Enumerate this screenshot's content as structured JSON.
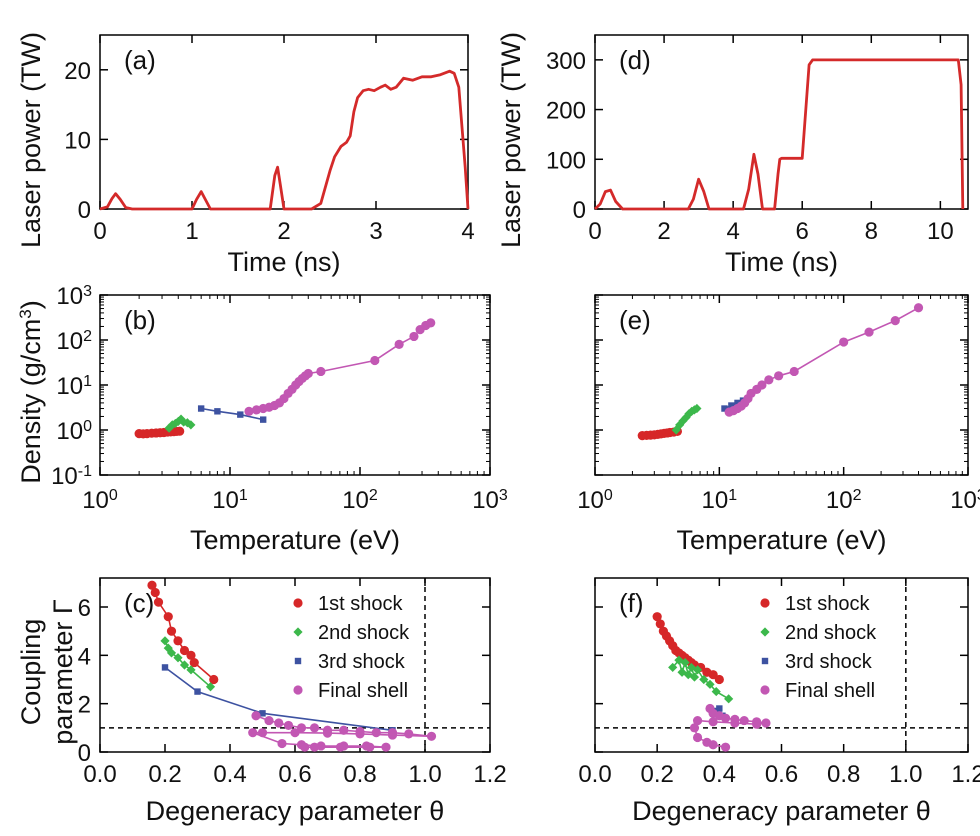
{
  "colors": {
    "laser": "#d42a2a",
    "shock1": "#d62728",
    "shock2": "#3cb84b",
    "shock3": "#3d52a1",
    "final": "#c257b3",
    "axis": "#000000"
  },
  "chart_data": [
    {
      "id": "a",
      "type": "line",
      "label": "(a)",
      "xlabel": "Time (ns)",
      "ylabel": "Laser power (TW)",
      "xlim": [
        0,
        4
      ],
      "ylim": [
        0,
        25
      ],
      "xticks": [
        0,
        1,
        2,
        3,
        4
      ],
      "yticks": [
        0,
        10,
        20
      ],
      "series": [
        {
          "name": "laser power",
          "color": "#d42a2a",
          "x": [
            0,
            0.08,
            0.13,
            0.17,
            0.22,
            0.28,
            0.35,
            1.0,
            1.05,
            1.1,
            1.14,
            1.2,
            1.85,
            1.9,
            1.93,
            1.96,
            2.0,
            2.3,
            2.4,
            2.5,
            2.55,
            2.62,
            2.68,
            2.72,
            2.76,
            2.8,
            2.86,
            2.92,
            2.98,
            3.05,
            3.1,
            3.16,
            3.22,
            3.3,
            3.4,
            3.5,
            3.6,
            3.7,
            3.8,
            3.85,
            3.9,
            3.97,
            4.0
          ],
          "y": [
            0,
            0.3,
            1.5,
            2.2,
            1.4,
            0.2,
            0,
            0,
            1.4,
            2.5,
            1.5,
            0,
            0,
            4.8,
            6.0,
            3.5,
            0,
            0,
            0.8,
            5.5,
            7.5,
            9.0,
            9.6,
            10.5,
            14.0,
            16.0,
            17.0,
            17.2,
            17.0,
            17.5,
            17.8,
            17.2,
            17.5,
            18.8,
            18.5,
            19.0,
            19.0,
            19.3,
            19.8,
            19.5,
            17.5,
            6.0,
            0
          ]
        }
      ]
    },
    {
      "id": "d",
      "type": "line",
      "label": "(d)",
      "xlabel": "Time (ns)",
      "ylabel": "Laser power (TW)",
      "xlim": [
        0,
        10.8
      ],
      "ylim": [
        0,
        350
      ],
      "xticks": [
        0,
        2,
        4,
        6,
        8,
        10
      ],
      "yticks": [
        0,
        100,
        200,
        300
      ],
      "series": [
        {
          "name": "laser power",
          "color": "#d42a2a",
          "x": [
            0,
            0.15,
            0.3,
            0.45,
            0.6,
            0.8,
            2.7,
            2.85,
            3.0,
            3.15,
            3.3,
            4.3,
            4.45,
            4.6,
            4.72,
            4.85,
            5.2,
            5.3,
            5.35,
            5.4,
            5.8,
            6.0,
            6.2,
            6.3,
            10.4,
            10.52,
            10.6,
            10.65
          ],
          "y": [
            0,
            10,
            35,
            38,
            15,
            0,
            0,
            20,
            60,
            35,
            0,
            0,
            40,
            110,
            70,
            0,
            0,
            70,
            100,
            102,
            102,
            102,
            290,
            300,
            300,
            300,
            250,
            0
          ]
        }
      ]
    },
    {
      "id": "b",
      "type": "scatter",
      "label": "(b)",
      "xlabel": "Temperature (eV)",
      "ylabel": "Density (g/cm3)",
      "xscale": "log",
      "yscale": "log",
      "xlim": [
        1,
        1000
      ],
      "ylim": [
        0.1,
        1000
      ],
      "xticks": [
        1,
        10,
        100,
        1000
      ],
      "yticks": [
        0.1,
        1,
        10,
        100,
        1000
      ],
      "series": [
        {
          "name": "1st shock",
          "marker": "circle",
          "color": "#d62728",
          "x": [
            2.0,
            2.15,
            2.3,
            2.5,
            2.7,
            2.9,
            3.1,
            3.3,
            3.5,
            3.7,
            3.9,
            4.1
          ],
          "y": [
            0.83,
            0.82,
            0.83,
            0.85,
            0.86,
            0.87,
            0.88,
            0.9,
            0.91,
            0.92,
            0.93,
            0.94
          ]
        },
        {
          "name": "2nd shock",
          "marker": "diamond",
          "color": "#3cb84b",
          "x": [
            3.4,
            3.6,
            3.8,
            4.0,
            4.2,
            4.4,
            4.7,
            5.0
          ],
          "y": [
            1.1,
            1.3,
            1.4,
            1.55,
            1.75,
            1.5,
            1.45,
            1.3
          ]
        },
        {
          "name": "3rd shock",
          "marker": "square",
          "color": "#3d52a1",
          "x": [
            6.0,
            8.0,
            12.0,
            18.0
          ],
          "y": [
            3.0,
            2.6,
            2.2,
            1.7
          ]
        },
        {
          "name": "Final shell",
          "marker": "circle",
          "color": "#c257b3",
          "x": [
            14,
            16,
            18,
            20,
            22,
            24,
            26,
            28,
            30,
            32,
            34,
            36,
            38,
            40,
            50,
            130,
            200,
            260,
            290,
            320,
            350
          ],
          "y": [
            2.6,
            2.8,
            3.0,
            3.2,
            3.5,
            4.0,
            5.0,
            6.5,
            8.0,
            10,
            12,
            14,
            16,
            18,
            20,
            35,
            80,
            120,
            170,
            210,
            240
          ]
        }
      ]
    },
    {
      "id": "e",
      "type": "scatter",
      "label": "(e)",
      "xlabel": "Temperature (eV)",
      "ylabel": "",
      "xscale": "log",
      "yscale": "log",
      "xlim": [
        1,
        1000
      ],
      "ylim": [
        0.1,
        1000
      ],
      "xticks": [
        1,
        10,
        100,
        1000
      ],
      "yticks": [],
      "series": [
        {
          "name": "1st shock",
          "marker": "circle",
          "color": "#d62728",
          "x": [
            2.4,
            2.6,
            2.8,
            3.0,
            3.2,
            3.4,
            3.6,
            3.8,
            4.0,
            4.3,
            4.6
          ],
          "y": [
            0.75,
            0.76,
            0.77,
            0.78,
            0.8,
            0.82,
            0.84,
            0.86,
            0.88,
            0.9,
            0.93
          ]
        },
        {
          "name": "2nd shock",
          "marker": "diamond",
          "color": "#3cb84b",
          "x": [
            4.5,
            4.8,
            5.1,
            5.4,
            5.7,
            6.0,
            6.3,
            6.6
          ],
          "y": [
            1.0,
            1.3,
            1.6,
            1.9,
            2.3,
            2.6,
            2.8,
            3.0
          ]
        },
        {
          "name": "3rd shock",
          "marker": "square",
          "color": "#3d52a1",
          "x": [
            11,
            12.5,
            14,
            15.5
          ],
          "y": [
            3.0,
            3.5,
            4.0,
            4.5
          ]
        },
        {
          "name": "Final shell",
          "marker": "circle",
          "color": "#c257b3",
          "x": [
            12,
            13,
            14,
            15,
            16,
            17,
            18,
            20,
            22,
            25,
            30,
            40,
            100,
            160,
            260,
            400
          ],
          "y": [
            2.5,
            2.7,
            3.0,
            3.4,
            4.0,
            5.0,
            6.5,
            8.0,
            10,
            13,
            16,
            20,
            90,
            150,
            270,
            520
          ]
        }
      ]
    },
    {
      "id": "c",
      "type": "scatter",
      "label": "(c)",
      "xlabel": "Degeneracy parameter θ",
      "ylabel": "Coupling parameter Γ",
      "xlim": [
        0,
        1.2
      ],
      "ylim": [
        0,
        7.2
      ],
      "xticks": [
        0.0,
        0.2,
        0.4,
        0.6,
        0.8,
        1.0,
        1.2
      ],
      "yticks": [
        0,
        2,
        4,
        6
      ],
      "reference_lines": {
        "vertical_x": 1.0,
        "horizontal_y": 1.0
      },
      "legend": [
        "1st shock",
        "2nd shock",
        "3rd shock",
        "Final shell"
      ],
      "series": [
        {
          "name": "1st shock",
          "marker": "circle",
          "color": "#d62728",
          "x": [
            0.16,
            0.17,
            0.18,
            0.21,
            0.22,
            0.24,
            0.26,
            0.28,
            0.29,
            0.35
          ],
          "y": [
            6.9,
            6.6,
            6.2,
            5.6,
            5.0,
            4.6,
            4.2,
            4.0,
            3.7,
            3.0
          ]
        },
        {
          "name": "2nd shock",
          "marker": "diamond",
          "color": "#3cb84b",
          "x": [
            0.2,
            0.21,
            0.22,
            0.24,
            0.26,
            0.28,
            0.34
          ],
          "y": [
            4.6,
            4.3,
            4.1,
            3.9,
            3.6,
            3.4,
            2.7
          ]
        },
        {
          "name": "3rd shock",
          "marker": "square",
          "color": "#3d52a1",
          "x": [
            0.2,
            0.3,
            0.5,
            0.9
          ],
          "y": [
            3.5,
            2.5,
            1.6,
            0.9
          ]
        },
        {
          "name": "Final shell",
          "marker": "circle",
          "color": "#c257b3",
          "x": [
            0.48,
            0.52,
            0.55,
            0.58,
            0.62,
            0.66,
            0.7,
            0.75,
            0.8,
            0.85,
            0.9,
            0.95,
            1.02,
            0.9,
            0.8,
            0.7,
            0.6,
            0.5,
            0.47,
            0.56,
            0.62,
            0.68,
            0.75,
            0.82,
            0.88,
            0.83,
            0.74,
            0.66,
            0.63
          ],
          "y": [
            1.5,
            1.3,
            1.2,
            1.1,
            1.0,
            1.0,
            0.9,
            0.9,
            0.85,
            0.8,
            0.8,
            0.75,
            0.65,
            0.7,
            0.75,
            0.78,
            0.8,
            0.8,
            0.8,
            0.35,
            0.3,
            0.25,
            0.25,
            0.25,
            0.2,
            0.2,
            0.2,
            0.2,
            0.2
          ]
        }
      ]
    },
    {
      "id": "f",
      "type": "scatter",
      "label": "(f)",
      "xlabel": "Degeneracy parameter θ",
      "ylabel": "",
      "xlim": [
        0,
        1.2
      ],
      "ylim": [
        0,
        7.2
      ],
      "xticks": [
        0.0,
        0.2,
        0.4,
        0.6,
        0.8,
        1.0,
        1.2
      ],
      "yticks": [],
      "reference_lines": {
        "vertical_x": 1.0,
        "horizontal_y": 1.0
      },
      "legend": [
        "1st shock",
        "2nd shock",
        "3rd shock",
        "Final shell"
      ],
      "series": [
        {
          "name": "1st shock",
          "marker": "circle",
          "color": "#d62728",
          "x": [
            0.2,
            0.21,
            0.22,
            0.23,
            0.24,
            0.25,
            0.26,
            0.27,
            0.28,
            0.29,
            0.3,
            0.31,
            0.32,
            0.34,
            0.36,
            0.38,
            0.4
          ],
          "y": [
            5.6,
            5.3,
            5.0,
            4.8,
            4.6,
            4.4,
            4.2,
            4.1,
            4.0,
            3.9,
            3.8,
            3.7,
            3.6,
            3.5,
            3.3,
            3.2,
            3.0
          ]
        },
        {
          "name": "2nd shock",
          "marker": "diamond",
          "color": "#3cb84b",
          "x": [
            0.25,
            0.27,
            0.28,
            0.29,
            0.3,
            0.31,
            0.32,
            0.33,
            0.35,
            0.37,
            0.39,
            0.43
          ],
          "y": [
            3.5,
            3.8,
            3.3,
            3.7,
            3.2,
            3.5,
            3.1,
            3.4,
            3.0,
            2.8,
            2.5,
            2.2
          ]
        },
        {
          "name": "3rd shock",
          "marker": "square",
          "color": "#3d52a1",
          "x": [
            0.38,
            0.39,
            0.4,
            0.41
          ],
          "y": [
            1.6,
            1.7,
            1.8,
            1.5
          ]
        },
        {
          "name": "Final shell",
          "marker": "circle",
          "color": "#c257b3",
          "x": [
            0.37,
            0.38,
            0.4,
            0.42,
            0.45,
            0.48,
            0.52,
            0.55,
            0.52,
            0.45,
            0.38,
            0.33,
            0.32,
            0.33,
            0.36,
            0.38,
            0.42
          ],
          "y": [
            1.8,
            1.6,
            1.5,
            1.4,
            1.35,
            1.3,
            1.25,
            1.2,
            1.15,
            1.2,
            1.25,
            1.3,
            1.0,
            0.6,
            0.4,
            0.3,
            0.2
          ]
        }
      ]
    }
  ]
}
